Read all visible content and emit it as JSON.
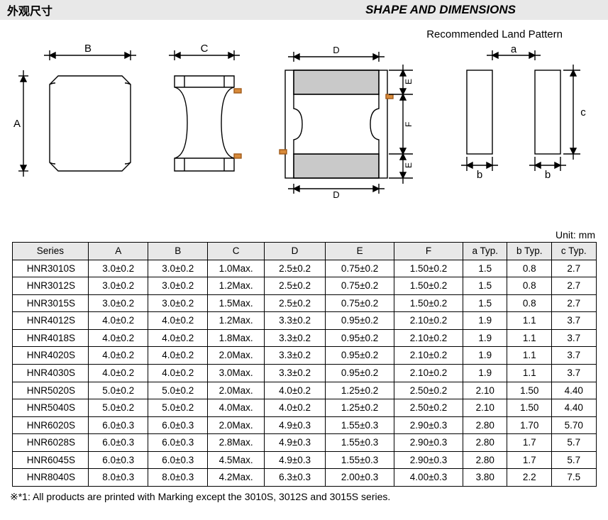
{
  "header": {
    "left": "外观尺寸",
    "right": "SHAPE AND DIMENSIONS"
  },
  "subtitle": "Recommended Land Pattern",
  "unit_label": "Unit: mm",
  "dim_labels": {
    "A": "A",
    "B": "B",
    "C": "C",
    "D": "D",
    "E": "E",
    "F": "F",
    "a": "a",
    "b": "b",
    "c": "c"
  },
  "table": {
    "columns": [
      "Series",
      "A",
      "B",
      "C",
      "D",
      "E",
      "F",
      "a Typ.",
      "b Typ.",
      "c Typ."
    ],
    "rows": [
      [
        "HNR3010S",
        "3.0±0.2",
        "3.0±0.2",
        "1.0Max.",
        "2.5±0.2",
        "0.75±0.2",
        "1.50±0.2",
        "1.5",
        "0.8",
        "2.7"
      ],
      [
        "HNR3012S",
        "3.0±0.2",
        "3.0±0.2",
        "1.2Max.",
        "2.5±0.2",
        "0.75±0.2",
        "1.50±0.2",
        "1.5",
        "0.8",
        "2.7"
      ],
      [
        "HNR3015S",
        "3.0±0.2",
        "3.0±0.2",
        "1.5Max.",
        "2.5±0.2",
        "0.75±0.2",
        "1.50±0.2",
        "1.5",
        "0.8",
        "2.7"
      ],
      [
        "HNR4012S",
        "4.0±0.2",
        "4.0±0.2",
        "1.2Max.",
        "3.3±0.2",
        "0.95±0.2",
        "2.10±0.2",
        "1.9",
        "1.1",
        "3.7"
      ],
      [
        "HNR4018S",
        "4.0±0.2",
        "4.0±0.2",
        "1.8Max.",
        "3.3±0.2",
        "0.95±0.2",
        "2.10±0.2",
        "1.9",
        "1.1",
        "3.7"
      ],
      [
        "HNR4020S",
        "4.0±0.2",
        "4.0±0.2",
        "2.0Max.",
        "3.3±0.2",
        "0.95±0.2",
        "2.10±0.2",
        "1.9",
        "1.1",
        "3.7"
      ],
      [
        "HNR4030S",
        "4.0±0.2",
        "4.0±0.2",
        "3.0Max.",
        "3.3±0.2",
        "0.95±0.2",
        "2.10±0.2",
        "1.9",
        "1.1",
        "3.7"
      ],
      [
        "HNR5020S",
        "5.0±0.2",
        "5.0±0.2",
        "2.0Max.",
        "4.0±0.2",
        "1.25±0.2",
        "2.50±0.2",
        "2.10",
        "1.50",
        "4.40"
      ],
      [
        "HNR5040S",
        "5.0±0.2",
        "5.0±0.2",
        "4.0Max.",
        "4.0±0.2",
        "1.25±0.2",
        "2.50±0.2",
        "2.10",
        "1.50",
        "4.40"
      ],
      [
        "HNR6020S",
        "6.0±0.3",
        "6.0±0.3",
        "2.0Max.",
        "4.9±0.3",
        "1.55±0.3",
        "2.90±0.3",
        "2.80",
        "1.70",
        "5.70"
      ],
      [
        "HNR6028S",
        "6.0±0.3",
        "6.0±0.3",
        "2.8Max.",
        "4.9±0.3",
        "1.55±0.3",
        "2.90±0.3",
        "2.80",
        "1.7",
        "5.7"
      ],
      [
        "HNR6045S",
        "6.0±0.3",
        "6.0±0.3",
        "4.5Max.",
        "4.9±0.3",
        "1.55±0.3",
        "2.90±0.3",
        "2.80",
        "1.7",
        "5.7"
      ],
      [
        "HNR8040S",
        "8.0±0.3",
        "8.0±0.3",
        "4.2Max.",
        "6.3±0.3",
        "2.00±0.3",
        "4.00±0.3",
        "3.80",
        "2.2",
        "7.5"
      ]
    ]
  },
  "footnote": "※*1: All products are printed with Marking except the 3010S, 3012S and 3015S series.",
  "colors": {
    "grey_fill": "#c9c9c9",
    "outline": "#000000",
    "copper": "#d88a3a",
    "header_bg": "#e8e8e8"
  }
}
